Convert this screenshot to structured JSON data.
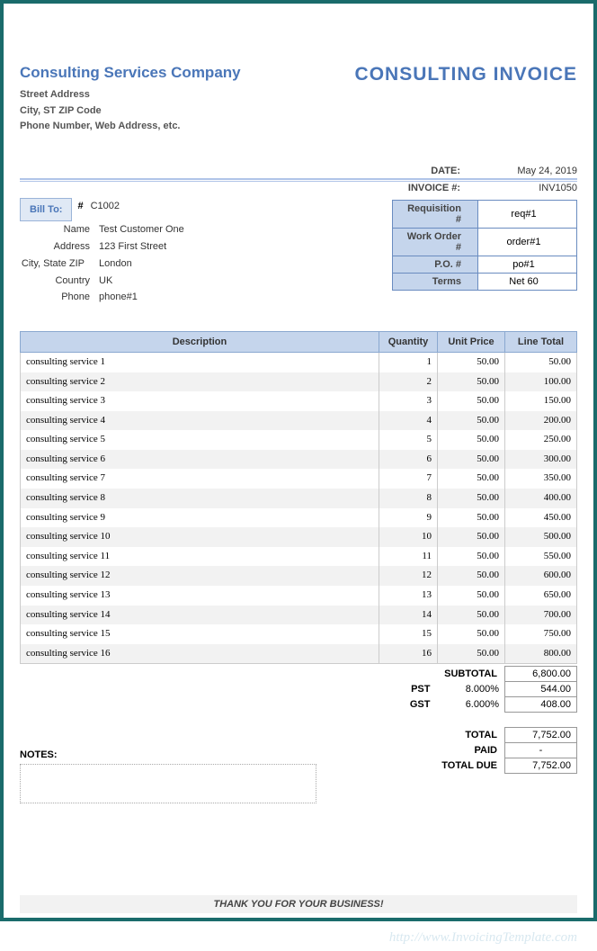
{
  "company": {
    "name": "Consulting Services Company",
    "addr1": "Street Address",
    "addr2": "City, ST  ZIP Code",
    "addr3": "Phone Number, Web Address, etc."
  },
  "title": "CONSULTING INVOICE",
  "meta": {
    "date_label": "DATE:",
    "date_value": "May 24, 2019",
    "invno_label": "INVOICE #:",
    "invno_value": "INV1050"
  },
  "bill_to": {
    "button": "Bill To:",
    "hash": "#",
    "code": "C1002",
    "labels": {
      "name": "Name",
      "address": "Address",
      "csz": "City, State ZIP",
      "country": "Country",
      "phone": "Phone"
    },
    "name": "Test Customer One",
    "address": "123 First Street",
    "csz": "London",
    "country": "UK",
    "phone": "phone#1"
  },
  "req": {
    "labels": {
      "req": "Requisition #",
      "wo": "Work Order #",
      "po": "P.O. #",
      "terms": "Terms"
    },
    "req": "req#1",
    "wo": "order#1",
    "po": "po#1",
    "terms": "Net 60"
  },
  "cols": {
    "desc": "Description",
    "qty": "Quantity",
    "price": "Unit Price",
    "total": "Line Total"
  },
  "items": [
    {
      "desc": "consulting service 1",
      "qty": "1",
      "price": "50.00",
      "total": "50.00"
    },
    {
      "desc": "consulting service 2",
      "qty": "2",
      "price": "50.00",
      "total": "100.00"
    },
    {
      "desc": "consulting service 3",
      "qty": "3",
      "price": "50.00",
      "total": "150.00"
    },
    {
      "desc": "consulting service 4",
      "qty": "4",
      "price": "50.00",
      "total": "200.00"
    },
    {
      "desc": "consulting service 5",
      "qty": "5",
      "price": "50.00",
      "total": "250.00"
    },
    {
      "desc": "consulting service 6",
      "qty": "6",
      "price": "50.00",
      "total": "300.00"
    },
    {
      "desc": "consulting service 7",
      "qty": "7",
      "price": "50.00",
      "total": "350.00"
    },
    {
      "desc": "consulting service 8",
      "qty": "8",
      "price": "50.00",
      "total": "400.00"
    },
    {
      "desc": "consulting service 9",
      "qty": "9",
      "price": "50.00",
      "total": "450.00"
    },
    {
      "desc": "consulting service 10",
      "qty": "10",
      "price": "50.00",
      "total": "500.00"
    },
    {
      "desc": "consulting service 11",
      "qty": "11",
      "price": "50.00",
      "total": "550.00"
    },
    {
      "desc": "consulting service 12",
      "qty": "12",
      "price": "50.00",
      "total": "600.00"
    },
    {
      "desc": "consulting service 13",
      "qty": "13",
      "price": "50.00",
      "total": "650.00"
    },
    {
      "desc": "consulting service 14",
      "qty": "14",
      "price": "50.00",
      "total": "700.00"
    },
    {
      "desc": "consulting service 15",
      "qty": "15",
      "price": "50.00",
      "total": "750.00"
    },
    {
      "desc": "consulting service 16",
      "qty": "16",
      "price": "50.00",
      "total": "800.00"
    }
  ],
  "totals": {
    "subtotal_label": "SUBTOTAL",
    "subtotal": "6,800.00",
    "pst_label": "PST",
    "pst_pct": "8.000%",
    "pst": "544.00",
    "gst_label": "GST",
    "gst_pct": "6.000%",
    "gst": "408.00",
    "total_label": "TOTAL",
    "total": "7,752.00",
    "paid_label": "PAID",
    "paid": "-",
    "due_label": "TOTAL DUE",
    "due": "7,752.00"
  },
  "notes_label": "NOTES:",
  "thanks": "THANK YOU FOR YOUR BUSINESS!",
  "watermark": "http://www.InvoicingTemplate.com",
  "colors": {
    "frame_border": "#1a6b6b",
    "accent_blue": "#4a76b8",
    "header_fill": "#c5d5ec",
    "header_border": "#8aa8d0",
    "row_alt": "#f2f2f2"
  }
}
